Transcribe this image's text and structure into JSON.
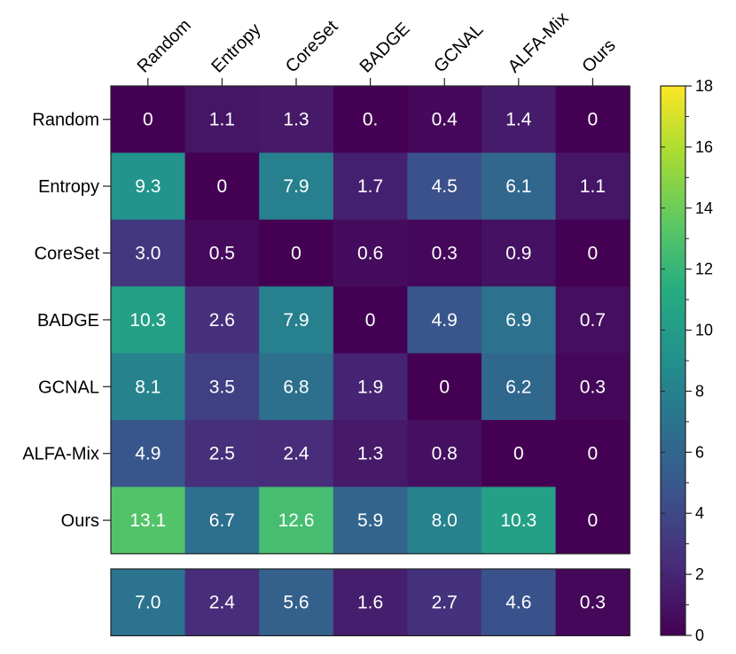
{
  "chart_data": {
    "type": "heatmap",
    "x_categories": [
      "Random",
      "Entropy",
      "CoreSet",
      "BADGE",
      "GCNAL",
      "ALFA-Mix",
      "Ours"
    ],
    "y_categories": [
      "Random",
      "Entropy",
      "CoreSet",
      "BADGE",
      "GCNAL",
      "ALFA-Mix",
      "Ours"
    ],
    "values": [
      [
        0,
        1.1,
        1.3,
        0.0,
        0.4,
        1.4,
        0
      ],
      [
        9.3,
        0,
        7.9,
        1.7,
        4.5,
        6.1,
        1.1
      ],
      [
        3.0,
        0.5,
        0,
        0.6,
        0.3,
        0.9,
        0
      ],
      [
        10.3,
        2.6,
        7.9,
        0,
        4.9,
        6.9,
        0.7
      ],
      [
        8.1,
        3.5,
        6.8,
        1.9,
        0,
        6.2,
        0.3
      ],
      [
        4.9,
        2.5,
        2.4,
        1.3,
        0.8,
        0,
        0
      ],
      [
        13.1,
        6.7,
        12.6,
        5.9,
        8.0,
        10.3,
        0
      ]
    ],
    "value_labels": [
      [
        "0",
        "1.1",
        "1.3",
        "0.",
        "0.4",
        "1.4",
        "0"
      ],
      [
        "9.3",
        "0",
        "7.9",
        "1.7",
        "4.5",
        "6.1",
        "1.1"
      ],
      [
        "3.0",
        "0.5",
        "0",
        "0.6",
        "0.3",
        "0.9",
        "0"
      ],
      [
        "10.3",
        "2.6",
        "7.9",
        "0",
        "4.9",
        "6.9",
        "0.7"
      ],
      [
        "8.1",
        "3.5",
        "6.8",
        "1.9",
        "0",
        "6.2",
        "0.3"
      ],
      [
        "4.9",
        "2.5",
        "2.4",
        "1.3",
        "0.8",
        "0",
        "0"
      ],
      [
        "13.1",
        "6.7",
        "12.6",
        "5.9",
        "8.0",
        "10.3",
        "0"
      ]
    ],
    "summary_row": {
      "values": [
        7.0,
        2.4,
        5.6,
        1.6,
        2.7,
        4.6,
        0.3
      ],
      "labels": [
        "7.0",
        "2.4",
        "5.6",
        "1.6",
        "2.7",
        "4.6",
        "0.3"
      ]
    },
    "colorbar": {
      "colormap": "viridis",
      "range": [
        0,
        18
      ],
      "ticks": [
        0,
        2,
        4,
        6,
        8,
        10,
        12,
        14,
        16,
        18
      ]
    },
    "title": "",
    "xlabel": "",
    "ylabel": ""
  }
}
